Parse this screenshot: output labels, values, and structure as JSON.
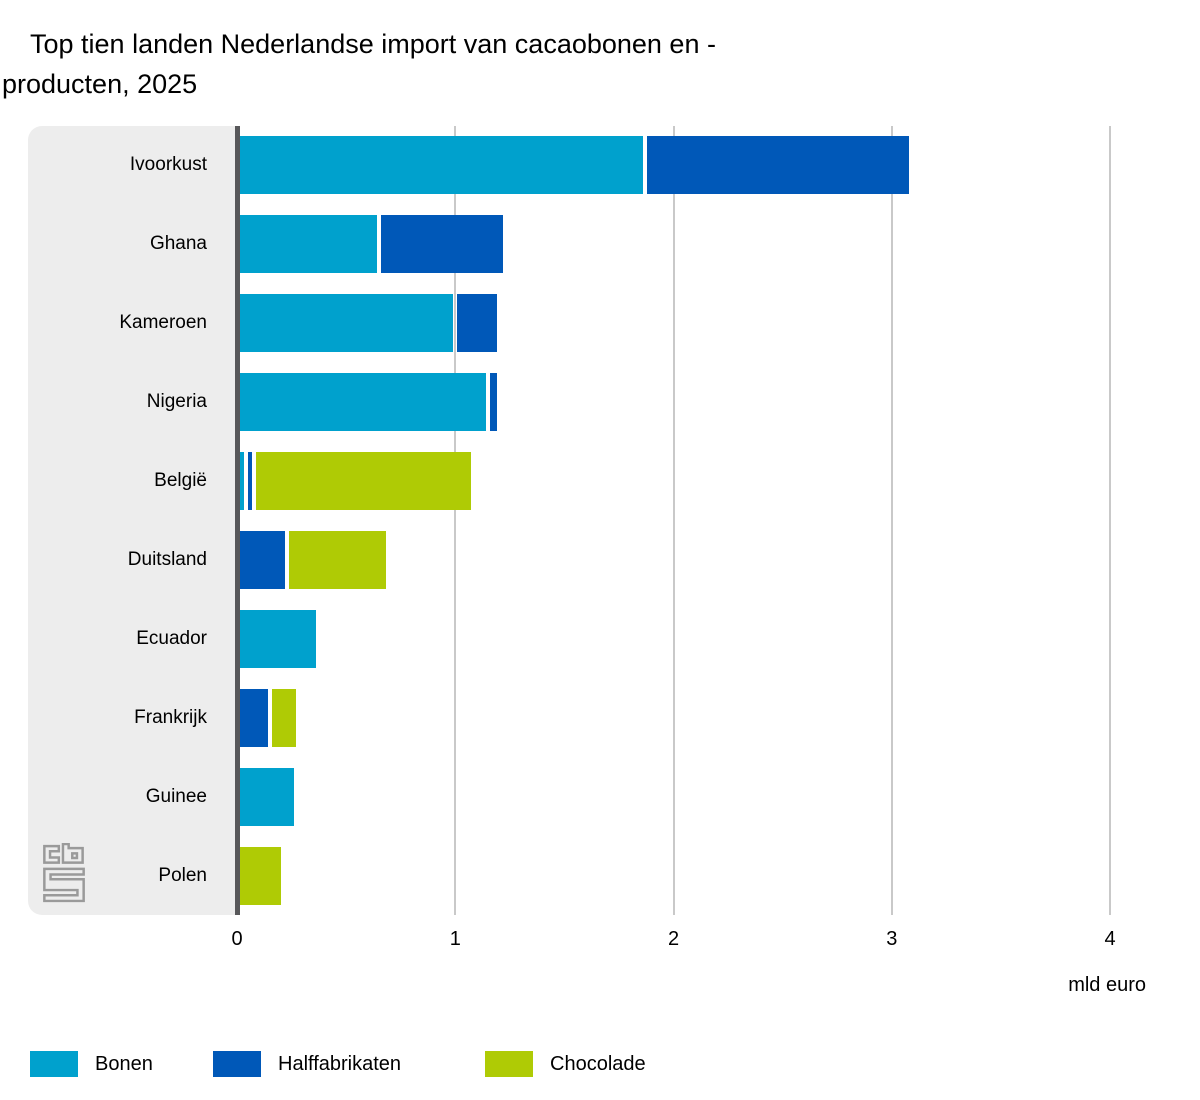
{
  "title_lines": [
    "Top tien landen Nederlandse import van cacaobonen en -",
    "producten, 2025"
  ],
  "axis": {
    "tick_labels": [
      "0",
      "1",
      "2",
      "3",
      "4"
    ],
    "unit_label": "mld euro"
  },
  "legend": [
    {
      "label": "Bonen",
      "color": "#00a1cd"
    },
    {
      "label": "Halffabrikaten",
      "color": "#0058b8"
    },
    {
      "label": "Chocolade",
      "color": "#afcb05"
    }
  ],
  "logo": {
    "name": "cbs-logo",
    "color": "#9a9a9a"
  },
  "colors": {
    "bonen": "#00a1cd",
    "halffabrikaten": "#0058b8",
    "chocolade": "#afcb05",
    "sidebar_bg": "#ededed",
    "gridline": "#c9c9c9",
    "zero_axis": "#58585a"
  },
  "chart_data": {
    "type": "bar",
    "orientation": "horizontal",
    "stacked": true,
    "title": "Top tien landen Nederlandse import van cacaobonen en -producten, 2025",
    "categories": [
      "Ivoorkust",
      "Ghana",
      "Kameroen",
      "Nigeria",
      "België",
      "Duitsland",
      "Ecuador",
      "Frankrijk",
      "Guinee",
      "Polen"
    ],
    "series": [
      {
        "name": "Bonen",
        "color": "#00a1cd",
        "values": [
          1.87,
          0.65,
          1.0,
          1.15,
          0.04,
          0,
          0.37,
          0,
          0.27,
          0
        ]
      },
      {
        "name": "Halffabrikaten",
        "color": "#0058b8",
        "values": [
          1.22,
          0.58,
          0.2,
          0.05,
          0.04,
          0.23,
          0,
          0.15,
          0,
          0
        ]
      },
      {
        "name": "Chocolade",
        "color": "#afcb05",
        "values": [
          0,
          0,
          0,
          0,
          1.0,
          0.46,
          0,
          0.13,
          0,
          0.21
        ]
      }
    ],
    "totals": [
      3.09,
      1.23,
      1.2,
      1.2,
      1.08,
      0.69,
      0.37,
      0.28,
      0.27,
      0.21
    ],
    "xlabel": "mld euro",
    "x_ticks": [
      0,
      1,
      2,
      3,
      4
    ],
    "xlim": [
      0,
      4.27
    ],
    "grid": "vertical gridlines at integer ticks",
    "legend_position": "bottom-left",
    "source": "CBS"
  }
}
